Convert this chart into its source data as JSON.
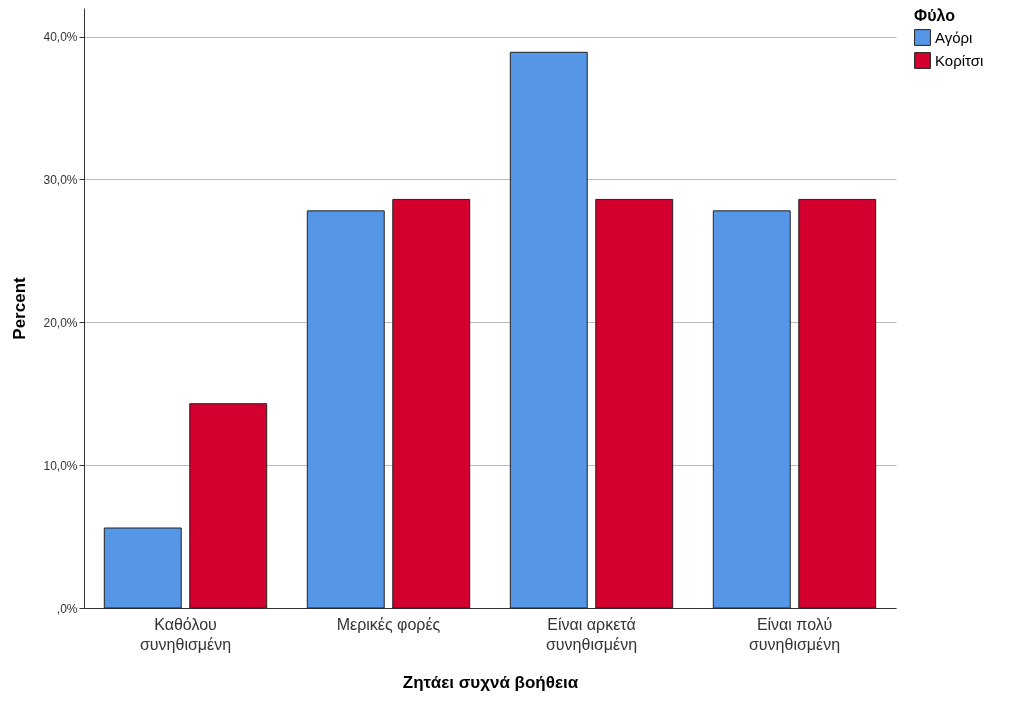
{
  "chart_data": {
    "type": "bar",
    "xlabel": "Ζητάει συχνά βοήθεια",
    "ylabel": "Percent",
    "legend_title": "Φύλο",
    "categories": [
      "Καθόλου συνηθισμένη",
      "Μερικές φορές",
      "Είναι αρκετά συνηθισμένη",
      "Είναι πολύ συνηθισμένη"
    ],
    "series": [
      {
        "name": "Αγόρι",
        "color": "#5596e6",
        "values": [
          5.6,
          27.8,
          38.9,
          27.8
        ]
      },
      {
        "name": "Κορίτσι",
        "color": "#d3002f",
        "values": [
          14.3,
          28.6,
          28.6,
          28.6
        ]
      }
    ],
    "ylim": [
      0,
      42
    ],
    "yticks": [
      {
        "value": 0,
        "label": ",0%"
      },
      {
        "value": 10,
        "label": "10,0%"
      },
      {
        "value": 20,
        "label": "20,0%"
      },
      {
        "value": 30,
        "label": "30,0%"
      },
      {
        "value": 40,
        "label": "40,0%"
      }
    ],
    "grid": "y",
    "legend": "top right"
  }
}
